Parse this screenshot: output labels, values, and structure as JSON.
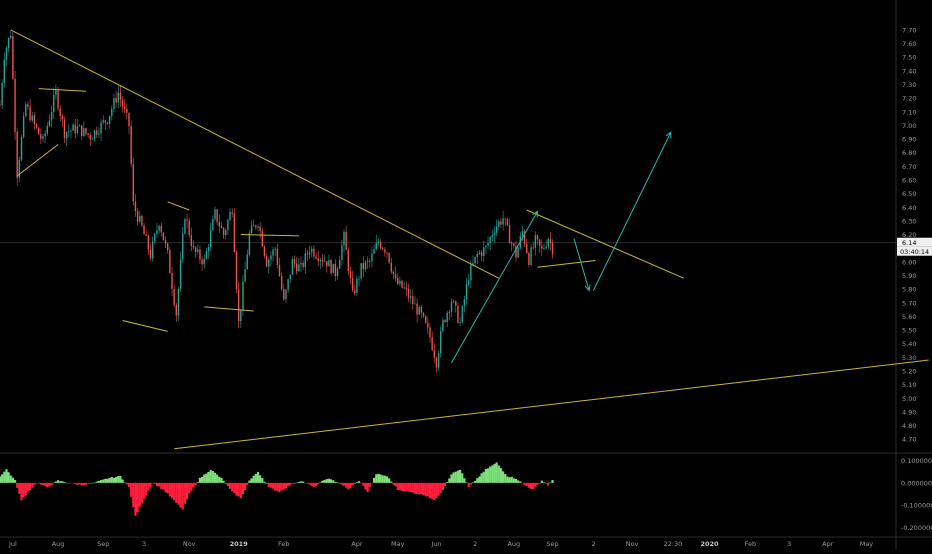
{
  "chart_data": {
    "type": "candlestick",
    "grid": false,
    "background": "#000000",
    "colors": {
      "up": "#26a69a",
      "down": "#ef5350",
      "trendline": "#c8b53a",
      "projection": "#2bb5a9",
      "axis_text": "#9a9a9a",
      "price_line": "#3a3a3a",
      "osc_positive": "#7ee07a",
      "osc_negative": "#ff1e3c"
    },
    "price_axis": {
      "ylim": [
        4.65,
        7.78
      ],
      "ticks": [
        "7.70",
        "7.60",
        "7.50",
        "7.40",
        "7.30",
        "7.20",
        "7.10",
        "7.00",
        "6.90",
        "6.80",
        "6.70",
        "6.60",
        "6.50",
        "6.40",
        "6.30",
        "6.20",
        "6.10",
        "6.00",
        "5.90",
        "5.80",
        "5.70",
        "5.60",
        "5.50",
        "5.40",
        "5.30",
        "5.20",
        "5.10",
        "5.00",
        "4.90",
        "4.80",
        "4.70"
      ]
    },
    "current_price": {
      "value": 6.14,
      "label": "6.14",
      "timer": "03:40:14"
    },
    "osc_axis": {
      "ylim": [
        -0.225,
        0.125
      ],
      "ticks": [
        {
          "value": 0.1,
          "label": "0.100000"
        },
        {
          "value": 0.0,
          "label": "0.000000"
        },
        {
          "value": -0.1,
          "label": "-0.100000"
        },
        {
          "value": -0.2,
          "label": "-0.200000"
        }
      ]
    },
    "time_axis": {
      "labels": [
        {
          "label": "Jul",
          "bar": 6
        },
        {
          "label": "Aug",
          "bar": 27
        },
        {
          "label": "Sep",
          "bar": 48
        },
        {
          "label": "3",
          "bar": 67
        },
        {
          "label": "Nov",
          "bar": 88
        },
        {
          "label": "2019",
          "bar": 111,
          "bold": true
        },
        {
          "label": "Feb",
          "bar": 132
        },
        {
          "label": "Apr",
          "bar": 166
        },
        {
          "label": "May",
          "bar": 185
        },
        {
          "label": "Jun",
          "bar": 203
        },
        {
          "label": "2",
          "bar": 221
        },
        {
          "label": "Aug",
          "bar": 239
        },
        {
          "label": "Sep",
          "bar": 257
        },
        {
          "label": "2",
          "bar": 276
        },
        {
          "label": "Nov",
          "bar": 294
        },
        {
          "label": "22:30",
          "bar": 313
        },
        {
          "label": "2020",
          "bar": 330,
          "bold": true
        },
        {
          "label": "Feb",
          "bar": 349
        },
        {
          "label": "3",
          "bar": 367
        },
        {
          "label": "Apr",
          "bar": 385
        },
        {
          "label": "May",
          "bar": 403
        }
      ]
    },
    "price_path": [
      [
        0,
        7.15
      ],
      [
        2,
        7.52
      ],
      [
        5,
        7.68
      ],
      [
        8,
        6.65
      ],
      [
        12,
        7.15
      ],
      [
        16,
        7.0
      ],
      [
        20,
        6.88
      ],
      [
        26,
        7.24
      ],
      [
        30,
        6.95
      ],
      [
        36,
        6.98
      ],
      [
        42,
        6.92
      ],
      [
        50,
        7.05
      ],
      [
        55,
        7.24
      ],
      [
        60,
        7.0
      ],
      [
        62,
        6.42
      ],
      [
        66,
        6.25
      ],
      [
        70,
        6.05
      ],
      [
        74,
        6.3
      ],
      [
        78,
        6.05
      ],
      [
        82,
        5.62
      ],
      [
        86,
        6.35
      ],
      [
        90,
        6.08
      ],
      [
        95,
        6.0
      ],
      [
        100,
        6.35
      ],
      [
        104,
        6.2
      ],
      [
        108,
        6.4
      ],
      [
        111,
        5.55
      ],
      [
        116,
        6.2
      ],
      [
        120,
        6.3
      ],
      [
        124,
        6.0
      ],
      [
        128,
        6.1
      ],
      [
        132,
        5.7
      ],
      [
        136,
        6.0
      ],
      [
        140,
        5.95
      ],
      [
        144,
        6.1
      ],
      [
        148,
        6.05
      ],
      [
        152,
        6.0
      ],
      [
        156,
        5.92
      ],
      [
        160,
        6.18
      ],
      [
        164,
        5.75
      ],
      [
        168,
        5.95
      ],
      [
        172,
        6.0
      ],
      [
        176,
        6.15
      ],
      [
        180,
        6.08
      ],
      [
        184,
        5.85
      ],
      [
        188,
        5.8
      ],
      [
        192,
        5.7
      ],
      [
        196,
        5.6
      ],
      [
        200,
        5.45
      ],
      [
        203,
        5.27
      ],
      [
        206,
        5.55
      ],
      [
        210,
        5.72
      ],
      [
        214,
        5.55
      ],
      [
        218,
        5.9
      ],
      [
        222,
        6.05
      ],
      [
        226,
        6.1
      ],
      [
        230,
        6.25
      ],
      [
        234,
        6.32
      ],
      [
        237,
        6.18
      ],
      [
        240,
        6.05
      ],
      [
        243,
        6.22
      ],
      [
        246,
        6.02
      ],
      [
        249,
        6.15
      ],
      [
        252,
        6.08
      ],
      [
        255,
        6.18
      ],
      [
        257,
        6.1
      ]
    ],
    "osc_path": [
      [
        0,
        0.03
      ],
      [
        3,
        0.06
      ],
      [
        7,
        0.01
      ],
      [
        10,
        -0.08
      ],
      [
        13,
        -0.04
      ],
      [
        17,
        0.0
      ],
      [
        22,
        -0.02
      ],
      [
        27,
        0.01
      ],
      [
        32,
        0.0
      ],
      [
        38,
        -0.01
      ],
      [
        44,
        0.0
      ],
      [
        50,
        0.02
      ],
      [
        56,
        0.03
      ],
      [
        60,
        -0.02
      ],
      [
        63,
        -0.15
      ],
      [
        67,
        -0.07
      ],
      [
        71,
        0.0
      ],
      [
        76,
        -0.03
      ],
      [
        81,
        -0.08
      ],
      [
        85,
        -0.12
      ],
      [
        88,
        -0.05
      ],
      [
        93,
        0.02
      ],
      [
        98,
        0.06
      ],
      [
        103,
        0.02
      ],
      [
        108,
        -0.04
      ],
      [
        112,
        -0.07
      ],
      [
        116,
        0.01
      ],
      [
        120,
        0.05
      ],
      [
        125,
        -0.02
      ],
      [
        130,
        -0.04
      ],
      [
        135,
        -0.01
      ],
      [
        140,
        0.01
      ],
      [
        146,
        -0.02
      ],
      [
        152,
        0.02
      ],
      [
        158,
        0.0
      ],
      [
        162,
        -0.03
      ],
      [
        167,
        0.01
      ],
      [
        171,
        -0.04
      ],
      [
        175,
        0.04
      ],
      [
        180,
        0.03
      ],
      [
        185,
        -0.03
      ],
      [
        190,
        -0.04
      ],
      [
        195,
        -0.05
      ],
      [
        199,
        -0.06
      ],
      [
        202,
        -0.08
      ],
      [
        206,
        -0.03
      ],
      [
        210,
        0.04
      ],
      [
        214,
        0.06
      ],
      [
        218,
        -0.02
      ],
      [
        222,
        0.02
      ],
      [
        226,
        0.06
      ],
      [
        231,
        0.09
      ],
      [
        236,
        0.03
      ],
      [
        240,
        0.02
      ],
      [
        244,
        -0.01
      ],
      [
        248,
        -0.03
      ],
      [
        252,
        0.01
      ],
      [
        255,
        -0.01
      ],
      [
        257,
        0.01
      ]
    ],
    "drawings": {
      "yellow_lines": [
        [
          [
            5,
            7.7
          ],
          [
            232,
            5.88
          ]
        ],
        [
          [
            8,
            6.63
          ],
          [
            27,
            6.86
          ]
        ],
        [
          [
            18,
            7.27
          ],
          [
            40,
            7.25
          ]
        ],
        [
          [
            57,
            5.57
          ],
          [
            78,
            5.49
          ]
        ],
        [
          [
            78,
            6.44
          ],
          [
            88,
            6.38
          ]
        ],
        [
          [
            95,
            5.67
          ],
          [
            118,
            5.64
          ]
        ],
        [
          [
            112,
            6.2
          ],
          [
            139,
            6.19
          ]
        ],
        [
          [
            81,
            4.63
          ],
          [
            432,
            5.28
          ]
        ],
        [
          [
            245,
            6.38
          ],
          [
            318,
            5.88
          ]
        ],
        [
          [
            250,
            5.96
          ],
          [
            277,
            6.01
          ]
        ]
      ],
      "arrows": [
        [
          [
            210,
            5.26
          ],
          [
            250,
            6.37
          ]
        ],
        [
          [
            267,
            6.17
          ],
          [
            274,
            5.79
          ]
        ],
        [
          [
            276,
            5.79
          ],
          [
            312,
            6.95
          ]
        ]
      ]
    }
  }
}
